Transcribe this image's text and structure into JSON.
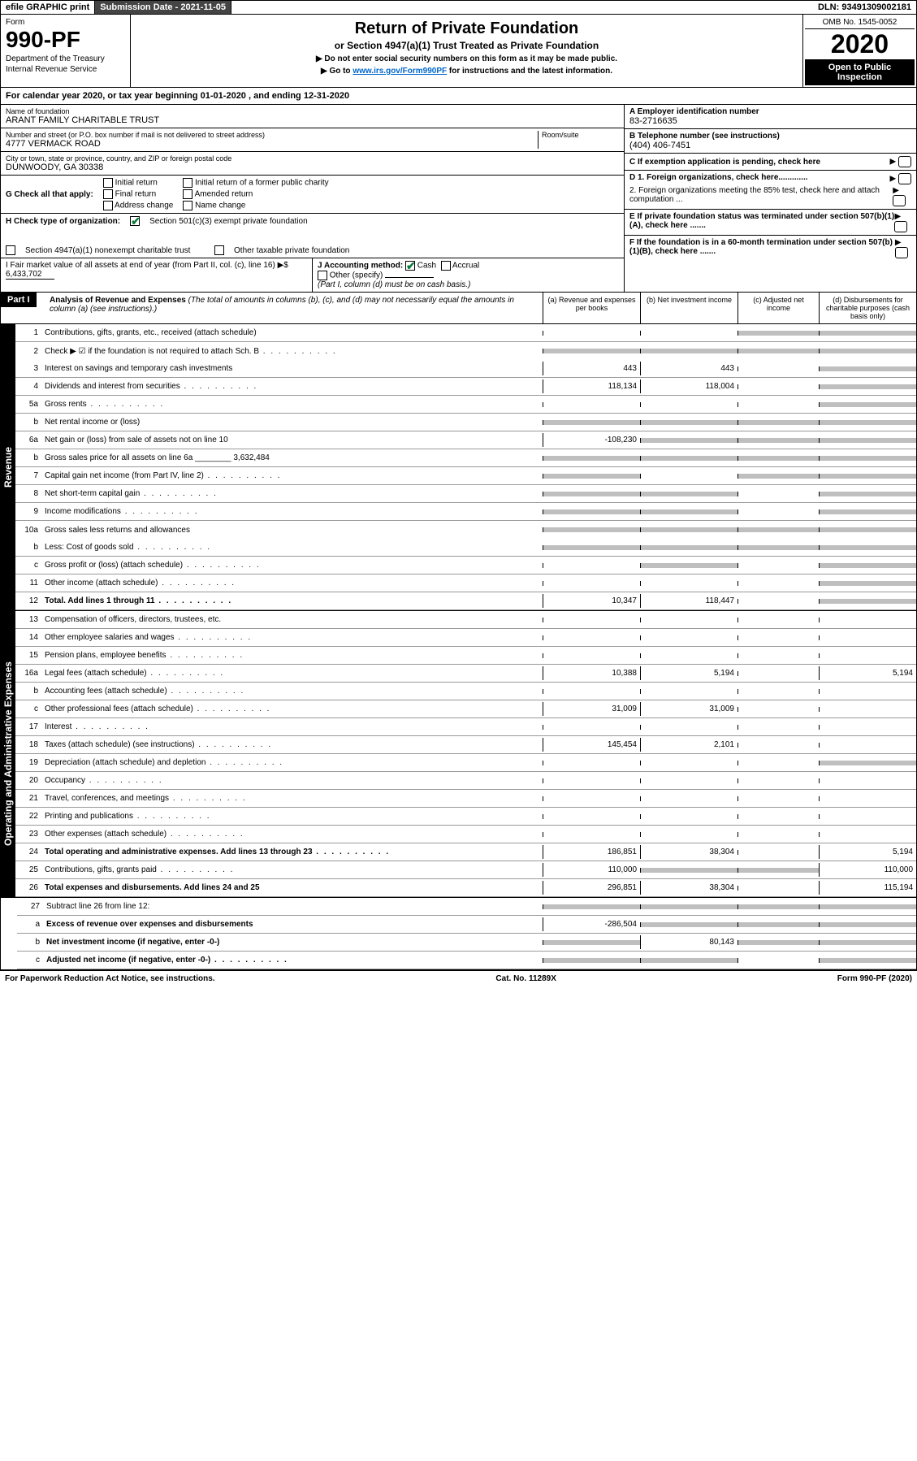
{
  "topbar": {
    "efile": "efile GRAPHIC print",
    "subdate_label": "Submission Date - ",
    "subdate": "2021-11-05",
    "dln_label": "DLN: ",
    "dln": "93491309002181"
  },
  "header": {
    "form_label": "Form",
    "form_num": "990-PF",
    "dept1": "Department of the Treasury",
    "dept2": "Internal Revenue Service",
    "title": "Return of Private Foundation",
    "subtitle": "or Section 4947(a)(1) Trust Treated as Private Foundation",
    "instr1": "▶ Do not enter social security numbers on this form as it may be made public.",
    "instr2_pre": "▶ Go to ",
    "instr2_link": "www.irs.gov/Form990PF",
    "instr2_post": " for instructions and the latest information.",
    "omb": "OMB No. 1545-0052",
    "year": "2020",
    "open_pub": "Open to Public Inspection"
  },
  "calyear": {
    "text_pre": "For calendar year 2020, or tax year beginning ",
    "begin": "01-01-2020",
    "text_mid": " , and ending ",
    "end": "12-31-2020"
  },
  "info": {
    "name_lbl": "Name of foundation",
    "name": "ARANT FAMILY CHARITABLE TRUST",
    "addr_lbl": "Number and street (or P.O. box number if mail is not delivered to street address)",
    "addr": "4777 VERMACK ROAD",
    "room_lbl": "Room/suite",
    "city_lbl": "City or town, state or province, country, and ZIP or foreign postal code",
    "city": "DUNWOODY, GA  30338",
    "ein_lbl": "A Employer identification number",
    "ein": "83-2716635",
    "tel_lbl": "B Telephone number (see instructions)",
    "tel": "(404) 406-7451",
    "c_lbl": "C If exemption application is pending, check here",
    "d1": "D 1. Foreign organizations, check here.............",
    "d2": "2. Foreign organizations meeting the 85% test, check here and attach computation ...",
    "e": "E  If private foundation status was terminated under section 507(b)(1)(A), check here .......",
    "f": "F  If the foundation is in a 60-month termination under section 507(b)(1)(B), check here ......."
  },
  "g": {
    "label": "G Check all that apply:",
    "opts": [
      "Initial return",
      "Final return",
      "Address change",
      "Initial return of a former public charity",
      "Amended return",
      "Name change"
    ]
  },
  "h": {
    "label": "H Check type of organization:",
    "opt1": "Section 501(c)(3) exempt private foundation",
    "opt2": "Section 4947(a)(1) nonexempt charitable trust",
    "opt3": "Other taxable private foundation"
  },
  "i": {
    "label": "I Fair market value of all assets at end of year (from Part II, col. (c), line 16) ▶$",
    "val": "6,433,702"
  },
  "j": {
    "label": "J Accounting method:",
    "cash": "Cash",
    "accrual": "Accrual",
    "other": "Other (specify)",
    "note": "(Part I, column (d) must be on cash basis.)"
  },
  "part1": {
    "label": "Part I",
    "title": "Analysis of Revenue and Expenses",
    "title_note": " (The total of amounts in columns (b), (c), and (d) may not necessarily equal the amounts in column (a) (see instructions).)",
    "col_a": "(a) Revenue and expenses per books",
    "col_b": "(b) Net investment income",
    "col_c": "(c) Adjusted net income",
    "col_d": "(d) Disbursements for charitable purposes (cash basis only)"
  },
  "sections": {
    "revenue": "Revenue",
    "opex": "Operating and Administrative Expenses"
  },
  "lines": [
    {
      "n": "1",
      "t": "Contributions, gifts, grants, etc., received (attach schedule)",
      "a": "",
      "b": "",
      "c": "g",
      "d": "g"
    },
    {
      "n": "2",
      "t": "Check ▶ ☑ if the foundation is not required to attach Sch. B",
      "dots": true,
      "a": "g",
      "b": "g",
      "c": "g",
      "d": "g",
      "nb": true
    },
    {
      "n": "3",
      "t": "Interest on savings and temporary cash investments",
      "a": "443",
      "b": "443",
      "c": "",
      "d": "g"
    },
    {
      "n": "4",
      "t": "Dividends and interest from securities",
      "dots": true,
      "a": "118,134",
      "b": "118,004",
      "c": "",
      "d": "g"
    },
    {
      "n": "5a",
      "t": "Gross rents",
      "dots": true,
      "a": "",
      "b": "",
      "c": "",
      "d": "g"
    },
    {
      "n": "b",
      "t": "Net rental income or (loss)",
      "a": "g",
      "b": "g",
      "c": "g",
      "d": "g"
    },
    {
      "n": "6a",
      "t": "Net gain or (loss) from sale of assets not on line 10",
      "a": "-108,230",
      "b": "g",
      "c": "g",
      "d": "g"
    },
    {
      "n": "b",
      "t": "Gross sales price for all assets on line 6a ________ 3,632,484",
      "a": "g",
      "b": "g",
      "c": "g",
      "d": "g"
    },
    {
      "n": "7",
      "t": "Capital gain net income (from Part IV, line 2)",
      "dots": true,
      "a": "g",
      "b": "",
      "c": "g",
      "d": "g"
    },
    {
      "n": "8",
      "t": "Net short-term capital gain",
      "dots": true,
      "a": "g",
      "b": "g",
      "c": "",
      "d": "g"
    },
    {
      "n": "9",
      "t": "Income modifications",
      "dots": true,
      "a": "g",
      "b": "g",
      "c": "",
      "d": "g"
    },
    {
      "n": "10a",
      "t": "Gross sales less returns and allowances",
      "a": "g",
      "b": "g",
      "c": "g",
      "d": "g",
      "nb": true
    },
    {
      "n": "b",
      "t": "Less: Cost of goods sold",
      "dots": true,
      "a": "g",
      "b": "g",
      "c": "g",
      "d": "g"
    },
    {
      "n": "c",
      "t": "Gross profit or (loss) (attach schedule)",
      "dots": true,
      "a": "",
      "b": "g",
      "c": "",
      "d": "g"
    },
    {
      "n": "11",
      "t": "Other income (attach schedule)",
      "dots": true,
      "a": "",
      "b": "",
      "c": "",
      "d": "g"
    },
    {
      "n": "12",
      "t": "Total. Add lines 1 through 11",
      "dots": true,
      "b2": true,
      "a": "10,347",
      "b": "118,447",
      "c": "",
      "d": "g"
    }
  ],
  "opex_lines": [
    {
      "n": "13",
      "t": "Compensation of officers, directors, trustees, etc.",
      "a": "",
      "b": "",
      "c": "",
      "d": ""
    },
    {
      "n": "14",
      "t": "Other employee salaries and wages",
      "dots": true,
      "a": "",
      "b": "",
      "c": "",
      "d": ""
    },
    {
      "n": "15",
      "t": "Pension plans, employee benefits",
      "dots": true,
      "a": "",
      "b": "",
      "c": "",
      "d": ""
    },
    {
      "n": "16a",
      "t": "Legal fees (attach schedule)",
      "dots": true,
      "a": "10,388",
      "b": "5,194",
      "c": "",
      "d": "5,194"
    },
    {
      "n": "b",
      "t": "Accounting fees (attach schedule)",
      "dots": true,
      "a": "",
      "b": "",
      "c": "",
      "d": ""
    },
    {
      "n": "c",
      "t": "Other professional fees (attach schedule)",
      "dots": true,
      "a": "31,009",
      "b": "31,009",
      "c": "",
      "d": ""
    },
    {
      "n": "17",
      "t": "Interest",
      "dots": true,
      "a": "",
      "b": "",
      "c": "",
      "d": ""
    },
    {
      "n": "18",
      "t": "Taxes (attach schedule) (see instructions)",
      "dots": true,
      "a": "145,454",
      "b": "2,101",
      "c": "",
      "d": ""
    },
    {
      "n": "19",
      "t": "Depreciation (attach schedule) and depletion",
      "dots": true,
      "a": "",
      "b": "",
      "c": "",
      "d": "g"
    },
    {
      "n": "20",
      "t": "Occupancy",
      "dots": true,
      "a": "",
      "b": "",
      "c": "",
      "d": ""
    },
    {
      "n": "21",
      "t": "Travel, conferences, and meetings",
      "dots": true,
      "a": "",
      "b": "",
      "c": "",
      "d": ""
    },
    {
      "n": "22",
      "t": "Printing and publications",
      "dots": true,
      "a": "",
      "b": "",
      "c": "",
      "d": ""
    },
    {
      "n": "23",
      "t": "Other expenses (attach schedule)",
      "dots": true,
      "a": "",
      "b": "",
      "c": "",
      "d": ""
    },
    {
      "n": "24",
      "t": "Total operating and administrative expenses. Add lines 13 through 23",
      "dots": true,
      "b2": true,
      "a": "186,851",
      "b": "38,304",
      "c": "",
      "d": "5,194"
    },
    {
      "n": "25",
      "t": "Contributions, gifts, grants paid",
      "dots": true,
      "a": "110,000",
      "b": "g",
      "c": "g",
      "d": "110,000"
    },
    {
      "n": "26",
      "t": "Total expenses and disbursements. Add lines 24 and 25",
      "b2": true,
      "a": "296,851",
      "b": "38,304",
      "c": "",
      "d": "115,194"
    }
  ],
  "bottom_lines": [
    {
      "n": "27",
      "t": "Subtract line 26 from line 12:",
      "a": "g",
      "b": "g",
      "c": "g",
      "d": "g"
    },
    {
      "n": "a",
      "t": "Excess of revenue over expenses and disbursements",
      "b2": true,
      "a": "-286,504",
      "b": "g",
      "c": "g",
      "d": "g"
    },
    {
      "n": "b",
      "t": "Net investment income (if negative, enter -0-)",
      "b2": true,
      "a": "g",
      "b": "80,143",
      "c": "g",
      "d": "g"
    },
    {
      "n": "c",
      "t": "Adjusted net income (if negative, enter -0-)",
      "dots": true,
      "b2": true,
      "a": "g",
      "b": "g",
      "c": "",
      "d": "g"
    }
  ],
  "footer": {
    "left": "For Paperwork Reduction Act Notice, see instructions.",
    "mid": "Cat. No. 11289X",
    "right": "Form 990-PF (2020)"
  }
}
